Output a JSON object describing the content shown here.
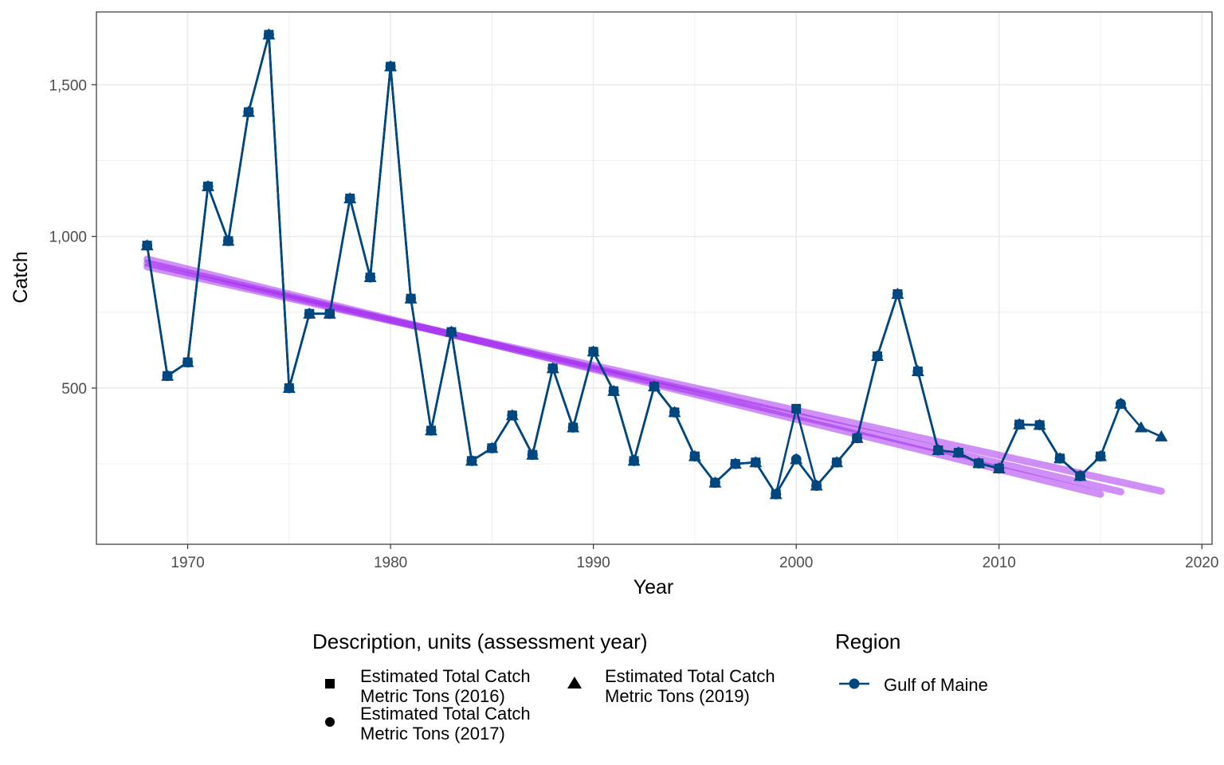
{
  "chart_data": {
    "type": "line",
    "xlabel": "Year",
    "ylabel": "Catch",
    "xlim": [
      1965.5,
      2020.5
    ],
    "ylim": [
      -15,
      1740
    ],
    "x_ticks": [
      1970,
      1980,
      1990,
      2000,
      2010,
      2020
    ],
    "x_tick_labels": [
      "1970",
      "1980",
      "1990",
      "2000",
      "2010",
      "2020"
    ],
    "y_ticks": [
      500,
      1000,
      1500
    ],
    "y_tick_labels": [
      "500",
      "1,000",
      "1,500"
    ],
    "grid": true,
    "legend_position": "bottom",
    "colors": {
      "series": "#00467f",
      "trend": "#a020f0"
    },
    "series": [
      {
        "name": "Estimated Total Catch Metric Tons (2016)",
        "region": "Gulf of Maine",
        "marker": "square",
        "x": [
          1968,
          1969,
          1970,
          1971,
          1972,
          1973,
          1974,
          1975,
          1976,
          1977,
          1978,
          1979,
          1980,
          1981,
          1982,
          1983,
          1984,
          1985,
          1986,
          1987,
          1988,
          1989,
          1990,
          1991,
          1992,
          1993,
          1994,
          1995,
          1996,
          1997,
          1998,
          1999,
          2000,
          2001,
          2002,
          2003,
          2004,
          2005,
          2006,
          2007,
          2008,
          2009,
          2010,
          2011,
          2012,
          2013,
          2014,
          2015
        ],
        "values": [
          970,
          540,
          585,
          1165,
          985,
          1410,
          1665,
          500,
          745,
          745,
          1125,
          865,
          1560,
          795,
          360,
          685,
          260,
          302,
          410,
          280,
          565,
          370,
          620,
          490,
          260,
          505,
          420,
          275,
          188,
          250,
          255,
          150,
          432,
          178,
          255,
          335,
          605,
          810,
          555,
          295,
          287,
          252,
          235,
          380,
          378,
          268,
          210,
          275
        ]
      },
      {
        "name": "Estimated Total Catch Metric Tons (2017)",
        "region": "Gulf of Maine",
        "marker": "circle",
        "x": [
          1968,
          1969,
          1970,
          1971,
          1972,
          1973,
          1974,
          1975,
          1976,
          1977,
          1978,
          1979,
          1980,
          1981,
          1982,
          1983,
          1984,
          1985,
          1986,
          1987,
          1988,
          1989,
          1990,
          1991,
          1992,
          1993,
          1994,
          1995,
          1996,
          1997,
          1998,
          1999,
          2000,
          2001,
          2002,
          2003,
          2004,
          2005,
          2006,
          2007,
          2008,
          2009,
          2010,
          2011,
          2012,
          2013,
          2014,
          2015,
          2016
        ],
        "values": [
          970,
          540,
          585,
          1165,
          985,
          1410,
          1665,
          500,
          745,
          745,
          1125,
          865,
          1560,
          795,
          360,
          685,
          260,
          302,
          410,
          280,
          565,
          370,
          620,
          490,
          260,
          505,
          420,
          275,
          188,
          250,
          255,
          150,
          265,
          178,
          255,
          335,
          605,
          810,
          555,
          295,
          287,
          252,
          235,
          380,
          378,
          268,
          210,
          275,
          448
        ]
      },
      {
        "name": "Estimated Total Catch Metric Tons (2019)",
        "region": "Gulf of Maine",
        "marker": "triangle",
        "x": [
          1968,
          1969,
          1970,
          1971,
          1972,
          1973,
          1974,
          1975,
          1976,
          1977,
          1978,
          1979,
          1980,
          1981,
          1982,
          1983,
          1984,
          1985,
          1986,
          1987,
          1988,
          1989,
          1990,
          1991,
          1992,
          1993,
          1994,
          1995,
          1996,
          1997,
          1998,
          1999,
          2000,
          2001,
          2002,
          2003,
          2004,
          2005,
          2006,
          2007,
          2008,
          2009,
          2010,
          2011,
          2012,
          2013,
          2014,
          2015,
          2016,
          2017,
          2018
        ],
        "values": [
          970,
          540,
          585,
          1165,
          985,
          1410,
          1665,
          500,
          745,
          745,
          1125,
          865,
          1560,
          795,
          360,
          685,
          260,
          302,
          410,
          280,
          565,
          370,
          620,
          490,
          260,
          505,
          420,
          275,
          188,
          250,
          255,
          150,
          265,
          178,
          255,
          335,
          605,
          810,
          555,
          295,
          287,
          252,
          235,
          380,
          378,
          268,
          210,
          275,
          448,
          370,
          340
        ]
      }
    ],
    "trend_lines": [
      {
        "x": [
          1968,
          2015
        ],
        "values": [
          925,
          150
        ]
      },
      {
        "x": [
          1968,
          2016
        ],
        "values": [
          912,
          158
        ]
      },
      {
        "x": [
          1968,
          2018
        ],
        "values": [
          900,
          160
        ]
      }
    ]
  },
  "legend": {
    "description_title": "Description, units (assessment year)",
    "entries": [
      {
        "line1": "Estimated Total Catch",
        "line2": "Metric Tons (2016)",
        "marker": "square"
      },
      {
        "line1": "Estimated Total Catch",
        "line2": "Metric Tons (2017)",
        "marker": "circle"
      },
      {
        "line1": "Estimated Total Catch",
        "line2": "Metric Tons (2019)",
        "marker": "triangle"
      }
    ],
    "region_title": "Region",
    "region_label": "Gulf of Maine"
  }
}
